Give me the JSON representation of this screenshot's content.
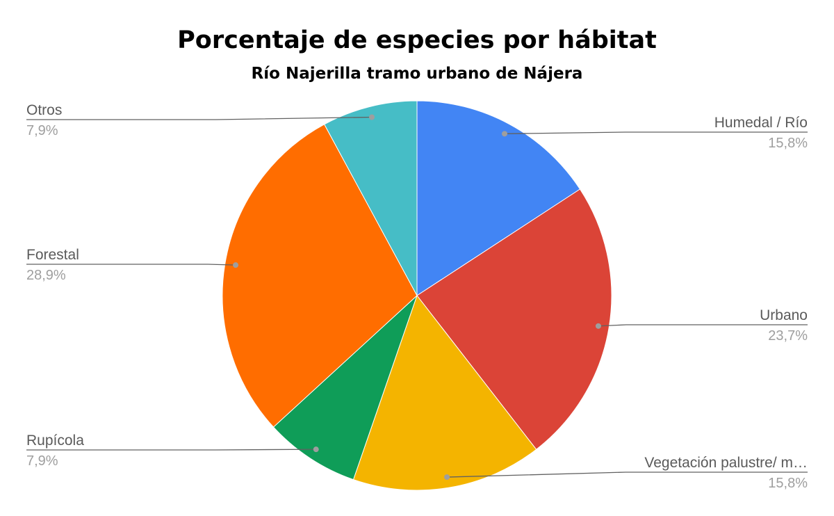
{
  "chart_data": {
    "type": "pie",
    "title": "Porcentaje de especies por hábitat",
    "subtitle": "Río Najerilla tramo urbano de Nájera",
    "slices": [
      {
        "label": "Humedal / Río",
        "value": 15.8,
        "percent_label": "15,8%",
        "color": "#4285f4"
      },
      {
        "label": "Urbano",
        "value": 23.7,
        "percent_label": "23,7%",
        "color": "#db4437"
      },
      {
        "label": "Vegetación palustre/ m…",
        "value": 15.8,
        "percent_label": "15,8%",
        "color": "#f4b400"
      },
      {
        "label": "Rupícola",
        "value": 7.9,
        "percent_label": "7,9%",
        "color": "#0f9d58"
      },
      {
        "label": "Forestal",
        "value": 28.9,
        "percent_label": "28,9%",
        "color": "#ff6d00"
      },
      {
        "label": "Otros",
        "value": 7.9,
        "percent_label": "7,9%",
        "color": "#46bdc6"
      }
    ],
    "start_angle": "top",
    "direction": "clockwise",
    "legend": "none",
    "label_style": "outside with leader lines"
  }
}
